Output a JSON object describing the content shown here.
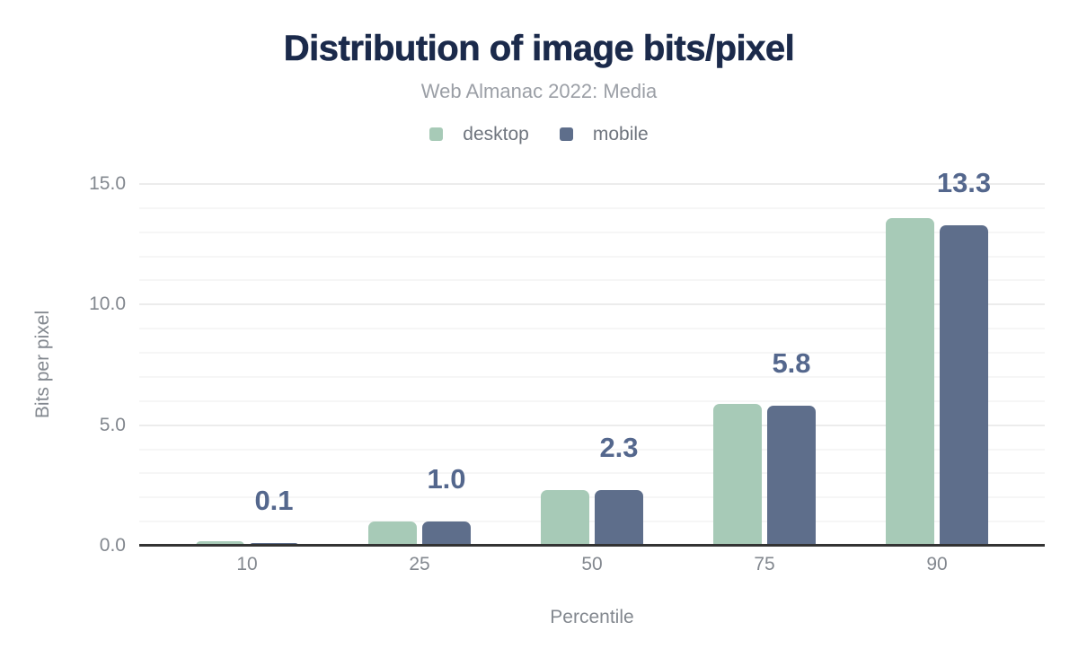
{
  "chart_data": {
    "type": "bar",
    "title": "Distribution of image bits/pixel",
    "subtitle": "Web Almanac 2022: Media",
    "xlabel": "Percentile",
    "ylabel": "Bits per pixel",
    "categories": [
      "10",
      "25",
      "50",
      "75",
      "90"
    ],
    "series": [
      {
        "name": "desktop",
        "color": "#a7cab7",
        "values": [
          0.2,
          1.0,
          2.3,
          5.9,
          13.6
        ]
      },
      {
        "name": "mobile",
        "color": "#5e6e8b",
        "values": [
          0.1,
          1.0,
          2.3,
          5.8,
          13.3
        ]
      }
    ],
    "bar_labels": {
      "series": "mobile",
      "values": [
        "0.1",
        "1.0",
        "2.3",
        "5.8",
        "13.3"
      ]
    },
    "ylim": [
      0,
      15
    ],
    "yticks": [
      {
        "value": 0,
        "label": "0.0"
      },
      {
        "value": 5,
        "label": "5.0"
      },
      {
        "value": 10,
        "label": "10.0"
      },
      {
        "value": 15,
        "label": "15.0"
      }
    ],
    "minor_grid_step": 1,
    "grid": true,
    "legend_position": "top",
    "colors": {
      "title": "#1b2a4b",
      "subtitle": "#9b9fa6",
      "legend_text": "#6f757e",
      "tick_text": "#83888f",
      "axis_title_text": "#83888f",
      "bar_label": "#54678d",
      "axis_line": "#333333",
      "major_grid": "#ececec",
      "minor_grid": "#f6f6f6",
      "background": "#ffffff"
    }
  }
}
